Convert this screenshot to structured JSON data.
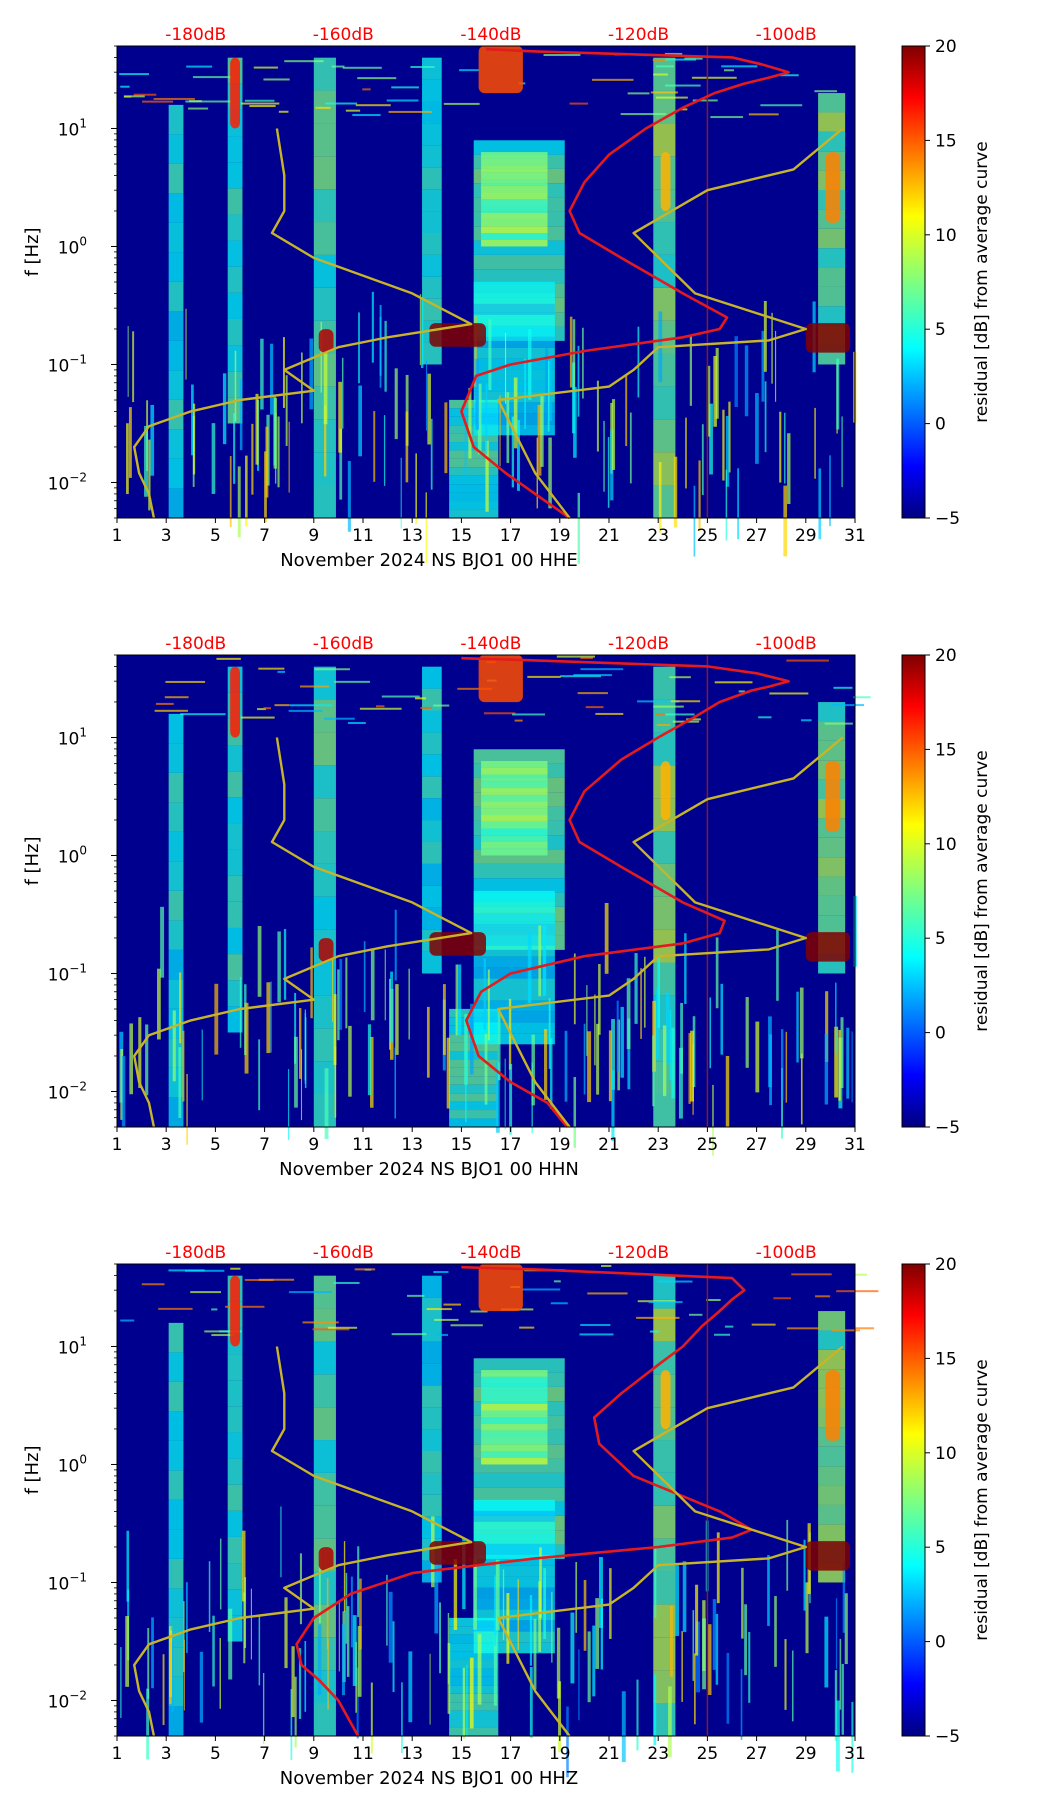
{
  "figure": {
    "colorbar_label": "residual [dB] from average curve",
    "ylabel": "f [Hz]"
  },
  "chart_data": [
    {
      "type": "heatmap",
      "xlabel": "November 2024 NS BJO1 00 HHE",
      "ylabel": "f [Hz]",
      "x_ticks": [
        1,
        3,
        5,
        7,
        9,
        11,
        13,
        15,
        17,
        19,
        21,
        23,
        25,
        27,
        29,
        31
      ],
      "xlim": [
        1,
        31
      ],
      "ylim": [
        0.005,
        50
      ],
      "y_scale": "log",
      "y_tick_labels": [
        "10^-2",
        "10^-1",
        "10^0",
        "10^1"
      ],
      "top_tick_labels": [
        "-180dB",
        "-160dB",
        "-140dB",
        "-120dB",
        "-100dB"
      ],
      "colorbar": {
        "min": -5,
        "max": 20,
        "ticks": [
          -5,
          0,
          5,
          10,
          15,
          20
        ],
        "colormap": "jet",
        "label": "residual [dB] from average curve"
      },
      "vertical_marker_day": 25,
      "series": [
        {
          "name": "",
          "color": "#e41a1c",
          "points": [
            [
              19.4,
              0.005
            ],
            [
              18.0,
              0.008
            ],
            [
              16.8,
              0.012
            ],
            [
              15.5,
              0.02
            ],
            [
              15.0,
              0.04
            ],
            [
              15.6,
              0.08
            ],
            [
              17.0,
              0.1
            ],
            [
              20.0,
              0.13
            ],
            [
              24.0,
              0.17
            ],
            [
              25.5,
              0.2
            ],
            [
              25.8,
              0.25
            ],
            [
              24.0,
              0.4
            ],
            [
              21.5,
              0.8
            ],
            [
              19.8,
              1.3
            ],
            [
              19.4,
              2.0
            ],
            [
              20.0,
              3.5
            ],
            [
              21.0,
              6.0
            ],
            [
              22.5,
              10.0
            ],
            [
              24.0,
              15.0
            ],
            [
              25.3,
              20.0
            ],
            [
              26.5,
              24.0
            ],
            [
              27.5,
              27.0
            ],
            [
              28.3,
              30.0
            ],
            [
              27.2,
              35.0
            ],
            [
              26.0,
              40.0
            ],
            [
              18.0,
              45.0
            ],
            [
              16.0,
              47.0
            ]
          ]
        },
        {
          "name": "",
          "color": "#c8b427",
          "points": [
            [
              2.5,
              0.005
            ],
            [
              2.3,
              0.008
            ],
            [
              1.9,
              0.012
            ],
            [
              1.7,
              0.02
            ],
            [
              2.3,
              0.03
            ],
            [
              4.0,
              0.04
            ],
            [
              6.0,
              0.05
            ],
            [
              9.0,
              0.06
            ],
            [
              7.8,
              0.09
            ],
            [
              10.0,
              0.14
            ],
            [
              12.0,
              0.17
            ],
            [
              15.4,
              0.22
            ],
            [
              13.0,
              0.4
            ],
            [
              9.0,
              0.8
            ],
            [
              7.3,
              1.3
            ],
            [
              7.8,
              2.0
            ],
            [
              7.8,
              4.0
            ],
            [
              7.5,
              10.0
            ]
          ]
        },
        {
          "name": "",
          "color": "#c8b427",
          "points": [
            [
              19.4,
              0.005
            ],
            [
              18.0,
              0.012
            ],
            [
              16.5,
              0.05
            ],
            [
              21.0,
              0.065
            ],
            [
              22.0,
              0.09
            ],
            [
              23.0,
              0.14
            ],
            [
              27.5,
              0.16
            ],
            [
              29.0,
              0.2
            ],
            [
              24.5,
              0.4
            ],
            [
              22.0,
              1.3
            ],
            [
              25.0,
              3.0
            ],
            [
              28.5,
              4.5
            ],
            [
              30.5,
              10.0
            ]
          ]
        }
      ]
    },
    {
      "type": "heatmap",
      "xlabel": "November 2024 NS BJO1 00 HHN",
      "ylabel": "f [Hz]",
      "x_ticks": [
        1,
        3,
        5,
        7,
        9,
        11,
        13,
        15,
        17,
        19,
        21,
        23,
        25,
        27,
        29,
        31
      ],
      "xlim": [
        1,
        31
      ],
      "ylim": [
        0.005,
        50
      ],
      "y_scale": "log",
      "y_tick_labels": [
        "10^-2",
        "10^-1",
        "10^0",
        "10^1"
      ],
      "top_tick_labels": [
        "-180dB",
        "-160dB",
        "-140dB",
        "-120dB",
        "-100dB"
      ],
      "colorbar": {
        "min": -5,
        "max": 20,
        "ticks": [
          -5,
          0,
          5,
          10,
          15,
          20
        ],
        "colormap": "jet",
        "label": "residual [dB] from average curve"
      },
      "vertical_marker_day": 25,
      "series": [
        {
          "name": "",
          "color": "#e41a1c",
          "points": [
            [
              19.3,
              0.005
            ],
            [
              18.5,
              0.008
            ],
            [
              17.0,
              0.012
            ],
            [
              15.7,
              0.02
            ],
            [
              15.2,
              0.04
            ],
            [
              15.8,
              0.07
            ],
            [
              17.0,
              0.1
            ],
            [
              20.0,
              0.14
            ],
            [
              24.0,
              0.18
            ],
            [
              25.5,
              0.22
            ],
            [
              25.7,
              0.28
            ],
            [
              24.0,
              0.4
            ],
            [
              21.5,
              0.8
            ],
            [
              19.8,
              1.3
            ],
            [
              19.4,
              2.0
            ],
            [
              20.0,
              3.5
            ],
            [
              21.5,
              6.5
            ],
            [
              23.0,
              10.0
            ],
            [
              24.5,
              15.0
            ],
            [
              25.5,
              20.0
            ],
            [
              26.8,
              25.0
            ],
            [
              27.5,
              27.0
            ],
            [
              28.3,
              30.0
            ],
            [
              27.0,
              35.0
            ],
            [
              25.0,
              40.0
            ],
            [
              18.0,
              45.0
            ],
            [
              15.0,
              47.0
            ]
          ]
        },
        {
          "name": "",
          "color": "#c8b427",
          "points": [
            [
              2.5,
              0.005
            ],
            [
              2.3,
              0.008
            ],
            [
              1.9,
              0.012
            ],
            [
              1.7,
              0.02
            ],
            [
              2.3,
              0.03
            ],
            [
              4.0,
              0.04
            ],
            [
              6.0,
              0.05
            ],
            [
              9.0,
              0.06
            ],
            [
              7.8,
              0.09
            ],
            [
              10.0,
              0.14
            ],
            [
              12.0,
              0.17
            ],
            [
              15.4,
              0.22
            ],
            [
              13.0,
              0.4
            ],
            [
              9.0,
              0.8
            ],
            [
              7.3,
              1.3
            ],
            [
              7.8,
              2.0
            ],
            [
              7.8,
              4.0
            ],
            [
              7.5,
              10.0
            ]
          ]
        },
        {
          "name": "",
          "color": "#c8b427",
          "points": [
            [
              19.4,
              0.005
            ],
            [
              18.0,
              0.012
            ],
            [
              16.5,
              0.05
            ],
            [
              21.0,
              0.065
            ],
            [
              22.0,
              0.09
            ],
            [
              23.0,
              0.14
            ],
            [
              27.5,
              0.16
            ],
            [
              29.0,
              0.2
            ],
            [
              24.5,
              0.4
            ],
            [
              22.0,
              1.3
            ],
            [
              25.0,
              3.0
            ],
            [
              28.5,
              4.5
            ],
            [
              30.5,
              10.0
            ]
          ]
        }
      ]
    },
    {
      "type": "heatmap",
      "xlabel": "November 2024 NS BJO1 00 HHZ",
      "ylabel": "f [Hz]",
      "x_ticks": [
        1,
        3,
        5,
        7,
        9,
        11,
        13,
        15,
        17,
        19,
        21,
        23,
        25,
        27,
        29,
        31
      ],
      "xlim": [
        1,
        31
      ],
      "ylim": [
        0.005,
        50
      ],
      "y_scale": "log",
      "y_tick_labels": [
        "10^-2",
        "10^-1",
        "10^0",
        "10^1"
      ],
      "top_tick_labels": [
        "-180dB",
        "-160dB",
        "-140dB",
        "-120dB",
        "-100dB"
      ],
      "colorbar": {
        "min": -5,
        "max": 20,
        "ticks": [
          -5,
          0,
          5,
          10,
          15,
          20
        ],
        "colormap": "jet",
        "label": "residual [dB] from average curve"
      },
      "vertical_marker_day": 25,
      "series": [
        {
          "name": "",
          "color": "#e41a1c",
          "points": [
            [
              10.8,
              0.005
            ],
            [
              10.0,
              0.01
            ],
            [
              9.2,
              0.015
            ],
            [
              8.5,
              0.02
            ],
            [
              8.3,
              0.03
            ],
            [
              9.0,
              0.05
            ],
            [
              10.5,
              0.08
            ],
            [
              13.0,
              0.12
            ],
            [
              18.0,
              0.16
            ],
            [
              23.0,
              0.2
            ],
            [
              26.0,
              0.24
            ],
            [
              26.8,
              0.28
            ],
            [
              25.5,
              0.4
            ],
            [
              22.0,
              0.8
            ],
            [
              20.6,
              1.5
            ],
            [
              20.4,
              2.5
            ],
            [
              21.5,
              4.0
            ],
            [
              23.0,
              7.0
            ],
            [
              24.0,
              10.0
            ],
            [
              24.8,
              15.0
            ],
            [
              25.5,
              20.0
            ],
            [
              26.0,
              25.0
            ],
            [
              26.5,
              30.0
            ],
            [
              26.0,
              38.0
            ],
            [
              18.0,
              45.0
            ],
            [
              15.0,
              47.0
            ]
          ]
        },
        {
          "name": "",
          "color": "#c8b427",
          "points": [
            [
              2.5,
              0.005
            ],
            [
              2.3,
              0.008
            ],
            [
              1.9,
              0.012
            ],
            [
              1.7,
              0.02
            ],
            [
              2.3,
              0.03
            ],
            [
              4.0,
              0.04
            ],
            [
              6.0,
              0.05
            ],
            [
              9.0,
              0.06
            ],
            [
              7.8,
              0.09
            ],
            [
              10.0,
              0.14
            ],
            [
              12.0,
              0.17
            ],
            [
              15.4,
              0.22
            ],
            [
              13.0,
              0.4
            ],
            [
              9.0,
              0.8
            ],
            [
              7.3,
              1.3
            ],
            [
              7.8,
              2.0
            ],
            [
              7.8,
              4.0
            ],
            [
              7.5,
              10.0
            ]
          ]
        },
        {
          "name": "",
          "color": "#c8b427",
          "points": [
            [
              19.4,
              0.005
            ],
            [
              18.0,
              0.012
            ],
            [
              16.5,
              0.05
            ],
            [
              21.0,
              0.065
            ],
            [
              22.0,
              0.09
            ],
            [
              23.0,
              0.14
            ],
            [
              27.5,
              0.16
            ],
            [
              29.0,
              0.2
            ],
            [
              24.5,
              0.4
            ],
            [
              22.0,
              1.3
            ],
            [
              25.0,
              3.0
            ],
            [
              28.5,
              4.5
            ],
            [
              30.5,
              10.0
            ]
          ]
        }
      ]
    }
  ]
}
